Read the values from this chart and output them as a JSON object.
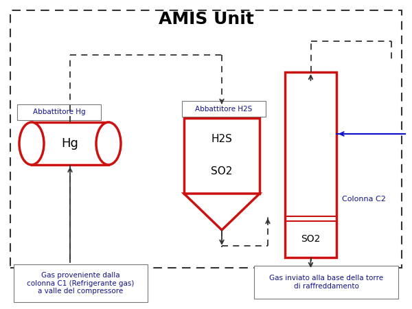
{
  "title": "AMIS Unit",
  "title_fontsize": 18,
  "bg_color": "#ffffff",
  "red_color": "#cc1111",
  "blue_color": "#1111cc",
  "dash_color": "#333333",
  "hg_scrubber_label": "Abbattitore Hg",
  "h2s_scrubber_label": "Abbattitore H2S",
  "hg_label": "Hg",
  "h2s_label": "H2S",
  "so2_label_h2s": "SO2",
  "so2_label_c2": "SO2",
  "colonna_c2_label": "Colonna C2",
  "bottom_left_text": "Gas proveniente dalla\ncolonna C1 (Refrigerante gas)\na valle del compressore",
  "bottom_right_text": "Gas inviato alla base della torre\ndi raffreddamento"
}
